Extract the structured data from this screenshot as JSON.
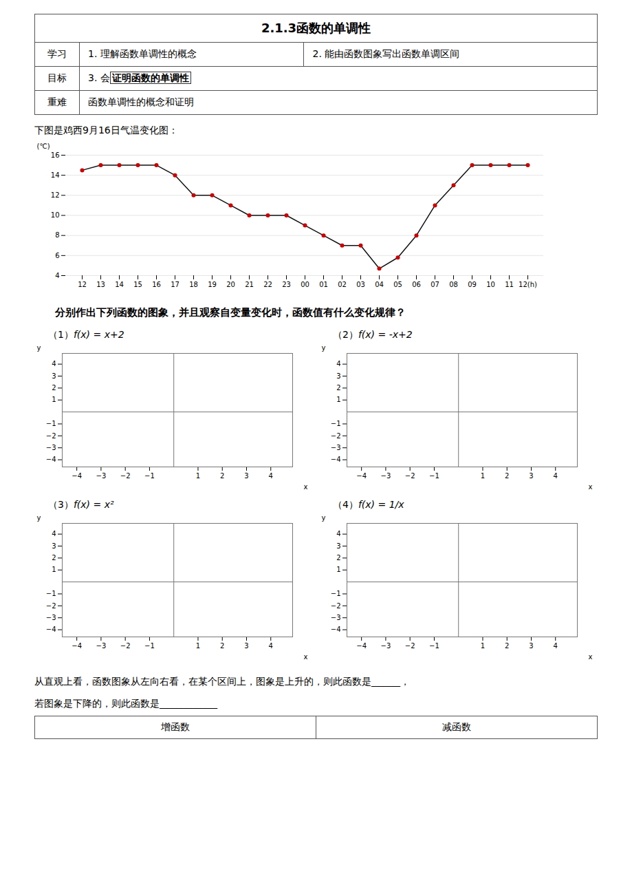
{
  "chart_data": [
    {
      "type": "line",
      "title": "下图是鸡西9月16日气温变化图：",
      "ylabel": "(℃)",
      "categories": [
        "12",
        "13",
        "14",
        "15",
        "16",
        "17",
        "18",
        "19",
        "20",
        "21",
        "22",
        "23",
        "00",
        "01",
        "02",
        "03",
        "04",
        "05",
        "06",
        "07",
        "08",
        "09",
        "10",
        "11",
        "12(h)"
      ],
      "values": [
        14.5,
        15,
        15,
        15,
        15,
        14,
        12,
        12,
        11,
        10,
        10,
        10,
        9,
        8,
        7,
        7,
        4.7,
        5.8,
        8,
        11,
        13,
        15,
        15,
        15,
        15
      ],
      "color": "#111111",
      "marker": "circle",
      "colors": [
        "#cc0000",
        "#cc0000",
        "#cc0000",
        "#cc0000",
        "#cc0000",
        "#cc0000",
        "#cc0000",
        "#cc0000",
        "#cc0000",
        "#cc0000",
        "#cc0000",
        "#cc0000",
        "#cc0000",
        "#cc0000",
        "#cc0000",
        "#cc0000",
        "#cc0000",
        "#cc0000",
        "#cc0000",
        "#cc0000",
        "#cc0000",
        "#cc0000",
        "#cc0000",
        "#cc0000",
        "#cc0000"
      ],
      "ylim": [
        4,
        16
      ],
      "yticks": [
        4,
        6,
        8,
        10,
        12,
        14,
        16
      ],
      "grid": true,
      "annotations": [
        "2.1.3函数的单调性",
        "学习",
        "1. 理解函数单调性的概念",
        "2. 能由函数图象写出函数单调区间",
        "目标",
        "3. 会",
        "证明函数的单调性",
        "重难",
        "函数单调性的概念和证明",
        "分别作出下列函数的图象，并且观察自变量变化时，函数值有什么变化规律？",
        "从直观上看，函数图象从左向右看，在某个区间上，图象是上升的，则此函数是______，",
        "若图象是下降的，则此函数是____________",
        "增函数",
        "减函数"
      ]
    },
    {
      "type": "axes",
      "title": "（1）",
      "subtitle": "f(x) = x+2",
      "xlabel": "x",
      "ylabel": "y",
      "xlim": [
        -4.6,
        4.9
      ],
      "ylim": [
        -4.6,
        4.9
      ],
      "xticks": [
        -4,
        -3,
        -2,
        -1,
        1,
        2,
        3,
        4
      ],
      "yticks": [
        -4,
        -3,
        -2,
        -1,
        1,
        2,
        3,
        4
      ],
      "color": "#777777"
    },
    {
      "type": "axes",
      "title": "（2）",
      "subtitle": "f(x) = -x+2",
      "xlabel": "x",
      "ylabel": "y",
      "xlim": [
        -4.6,
        4.9
      ],
      "ylim": [
        -4.6,
        4.9
      ],
      "xticks": [
        -4,
        -3,
        -2,
        -1,
        1,
        2,
        3,
        4
      ],
      "yticks": [
        -4,
        -3,
        -2,
        -1,
        1,
        2,
        3,
        4
      ],
      "color": "#777777"
    },
    {
      "type": "axes",
      "title": "（3）",
      "subtitle": "f(x) = x²",
      "xlabel": "x",
      "ylabel": "y",
      "xlim": [
        -4.6,
        4.9
      ],
      "ylim": [
        -4.6,
        4.9
      ],
      "xticks": [
        -4,
        -3,
        -2,
        -1,
        1,
        2,
        3,
        4
      ],
      "yticks": [
        -4,
        -3,
        -2,
        -1,
        1,
        2,
        3,
        4
      ],
      "color": "#777777"
    },
    {
      "type": "axes",
      "title": "（4）",
      "subtitle": "f(x) = 1/x",
      "xlabel": "x",
      "ylabel": "y",
      "xlim": [
        -4.6,
        4.9
      ],
      "ylim": [
        -4.6,
        4.9
      ],
      "xticks": [
        -4,
        -3,
        -2,
        -1,
        1,
        2,
        3,
        4
      ],
      "yticks": [
        -4,
        -3,
        -2,
        -1,
        1,
        2,
        3,
        4
      ],
      "color": "#777777"
    }
  ]
}
